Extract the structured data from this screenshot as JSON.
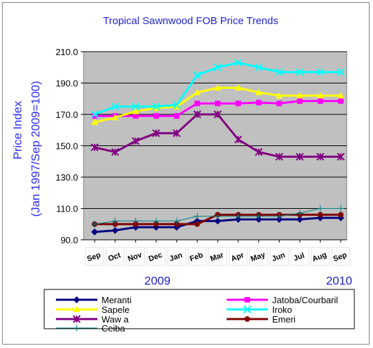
{
  "chart_data": {
    "type": "line",
    "title": "Tropical Sawnwood FOB Price Trends",
    "ylabel_line1": "Price Index",
    "ylabel_line2": "(Jan 1997/Sep 2009=100)",
    "ylim": [
      90,
      210
    ],
    "yticks": [
      "210.0",
      "190.0",
      "170.0",
      "150.0",
      "130.0",
      "110.0",
      "90.0"
    ],
    "grid": true,
    "categories": [
      "Sep",
      "Oct",
      "Nov",
      "Dec",
      "Jan",
      "Feb",
      "Mar",
      "Apr",
      "May",
      "Jun",
      "Jul",
      "Aug",
      "Sep"
    ],
    "year_labels": [
      "2009",
      "2010"
    ],
    "legend_placement": "bottom",
    "series": [
      {
        "name": "Meranti",
        "color": "#000080",
        "marker": "diamond",
        "values": [
          95,
          96,
          98,
          98,
          98,
          102,
          102,
          103,
          103,
          103,
          103,
          104,
          104
        ]
      },
      {
        "name": "Jatoba/Courbaril",
        "color": "#ff00ff",
        "marker": "square",
        "values": [
          169,
          169,
          169,
          169,
          169,
          177,
          177,
          177,
          177.5,
          177,
          178.5,
          178.5,
          178.5
        ]
      },
      {
        "name": "Sapele",
        "color": "#ffff00",
        "marker": "triangle",
        "values": [
          165,
          168,
          172,
          174,
          175,
          184,
          187,
          187,
          184,
          182,
          182,
          182,
          182
        ]
      },
      {
        "name": "Iroko",
        "color": "#00ffff",
        "marker": "x",
        "values": [
          170,
          175,
          175,
          175,
          176,
          195,
          200,
          203,
          200,
          197,
          197,
          197,
          197
        ]
      },
      {
        "name": "Waw a",
        "color": "#800080",
        "marker": "star",
        "values": [
          149,
          146,
          153,
          158,
          158,
          170,
          170,
          154,
          146,
          143,
          143,
          143,
          143
        ]
      },
      {
        "name": "Emeri",
        "color": "#800000",
        "marker": "circle",
        "values": [
          100,
          100,
          100,
          100,
          100,
          100,
          106,
          106,
          106,
          106,
          106,
          106,
          106
        ]
      },
      {
        "name": "Ceiba",
        "color": "#008080",
        "marker": "plus",
        "values": [
          100,
          102,
          102,
          102,
          102,
          105,
          105,
          105,
          105,
          105,
          107,
          110,
          110
        ]
      }
    ]
  }
}
